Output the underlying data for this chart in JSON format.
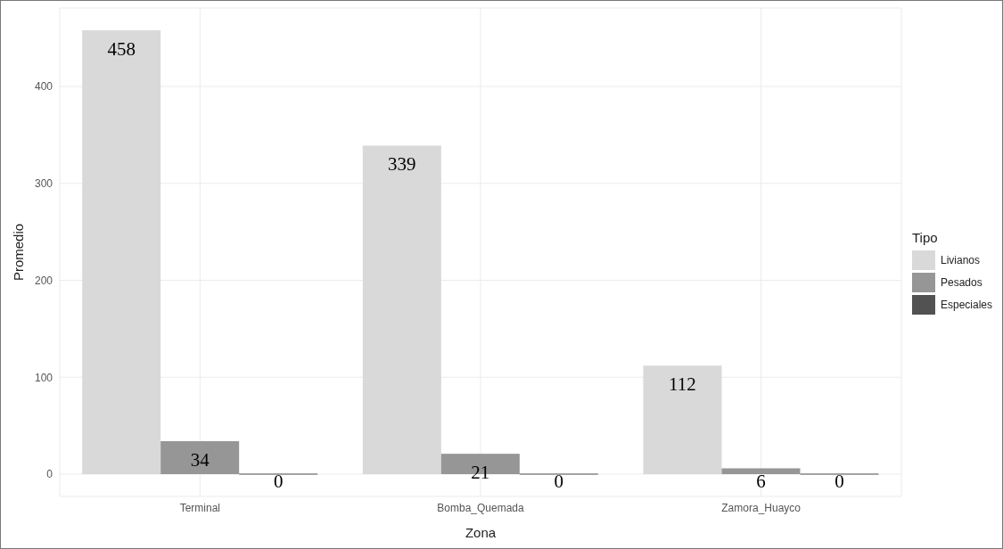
{
  "chart_data": {
    "type": "bar",
    "xlabel": "Zona",
    "ylabel": "Promedio",
    "legend_title": "Tipo",
    "categories": [
      "Terminal",
      "Bomba_Quemada",
      "Zamora_Huayco"
    ],
    "series": [
      {
        "name": "Livianos",
        "color": "#d9d9d9",
        "values": [
          458,
          339,
          112
        ]
      },
      {
        "name": "Pesados",
        "color": "#969696",
        "values": [
          34,
          21,
          6
        ]
      },
      {
        "name": "Especiales",
        "color": "#525252",
        "values": [
          0,
          0,
          0
        ]
      }
    ],
    "ylim": [
      -23,
      481
    ],
    "yticks": [
      0,
      100,
      200,
      300,
      400
    ],
    "grid": true,
    "legend": "right",
    "data_labels": true
  }
}
